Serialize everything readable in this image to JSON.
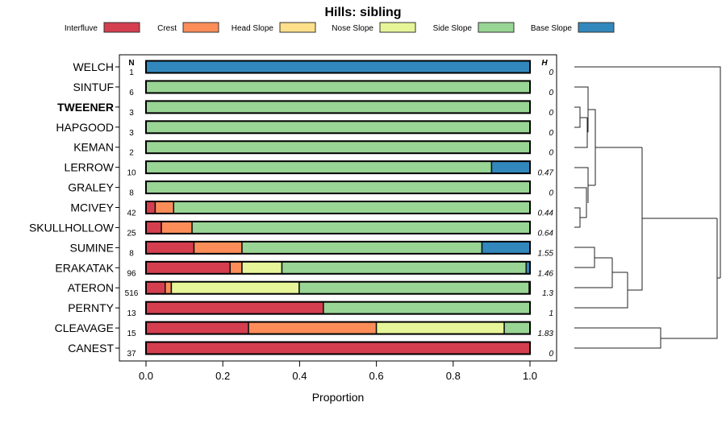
{
  "chart_data": {
    "type": "bar",
    "stacked": true,
    "orientation": "horizontal",
    "title": "Hills: sibling",
    "xlabel": "Proportion",
    "xlim": [
      0,
      1
    ],
    "xticks": [
      "0.0",
      "0.2",
      "0.4",
      "0.6",
      "0.8",
      "1.0"
    ],
    "n_header": "N",
    "h_header": "H",
    "legend_position": "top",
    "legend": [
      {
        "name": "Interfluve",
        "color": "#D53E4F"
      },
      {
        "name": "Crest",
        "color": "#FC8D59"
      },
      {
        "name": "Head Slope",
        "color": "#FEE08B"
      },
      {
        "name": "Nose Slope",
        "color": "#E6F598"
      },
      {
        "name": "Side Slope",
        "color": "#99D594"
      },
      {
        "name": "Base Slope",
        "color": "#3288BD"
      }
    ],
    "rows": [
      {
        "label": "WELCH",
        "n": "1",
        "h": "0",
        "bold": false,
        "values": [
          0,
          0,
          0,
          0,
          0,
          1
        ]
      },
      {
        "label": "SINTUF",
        "n": "6",
        "h": "0",
        "bold": false,
        "values": [
          0,
          0,
          0,
          0,
          1,
          0
        ]
      },
      {
        "label": "TWEENER",
        "n": "3",
        "h": "0",
        "bold": true,
        "values": [
          0,
          0,
          0,
          0,
          1,
          0
        ]
      },
      {
        "label": "HAPGOOD",
        "n": "3",
        "h": "0",
        "bold": false,
        "values": [
          0,
          0,
          0,
          0,
          1,
          0
        ]
      },
      {
        "label": "KEMAN",
        "n": "2",
        "h": "0",
        "bold": false,
        "values": [
          0,
          0,
          0,
          0,
          1,
          0
        ]
      },
      {
        "label": "LERROW",
        "n": "10",
        "h": "0.47",
        "bold": false,
        "values": [
          0,
          0,
          0,
          0,
          0.9,
          0.1
        ]
      },
      {
        "label": "GRALEY",
        "n": "8",
        "h": "0",
        "bold": false,
        "values": [
          0,
          0,
          0,
          0,
          1,
          0
        ]
      },
      {
        "label": "MCIVEY",
        "n": "42",
        "h": "0.44",
        "bold": false,
        "values": [
          0.024,
          0.048,
          0,
          0,
          0.928,
          0
        ]
      },
      {
        "label": "SKULLHOLLOW",
        "n": "25",
        "h": "0.64",
        "bold": false,
        "values": [
          0.04,
          0.08,
          0,
          0,
          0.88,
          0
        ]
      },
      {
        "label": "SUMINE",
        "n": "8",
        "h": "1.55",
        "bold": false,
        "values": [
          0.125,
          0.125,
          0,
          0,
          0.625,
          0.125
        ]
      },
      {
        "label": "ERAKATAK",
        "n": "96",
        "h": "1.46",
        "bold": false,
        "values": [
          0.219,
          0.031,
          0,
          0.104,
          0.636,
          0.01
        ]
      },
      {
        "label": "ATERON",
        "n": "516",
        "h": "1.3",
        "bold": false,
        "values": [
          0.05,
          0.016,
          0,
          0.333,
          0.599,
          0.002
        ]
      },
      {
        "label": "PERNTY",
        "n": "13",
        "h": "1",
        "bold": false,
        "values": [
          0.462,
          0,
          0,
          0,
          0.538,
          0
        ]
      },
      {
        "label": "CLEAVAGE",
        "n": "15",
        "h": "1.83",
        "bold": false,
        "values": [
          0.267,
          0.333,
          0,
          0.333,
          0.067,
          0
        ]
      },
      {
        "label": "CANEST",
        "n": "37",
        "h": "0",
        "bold": false,
        "values": [
          1,
          0,
          0,
          0,
          0,
          0
        ]
      }
    ]
  }
}
